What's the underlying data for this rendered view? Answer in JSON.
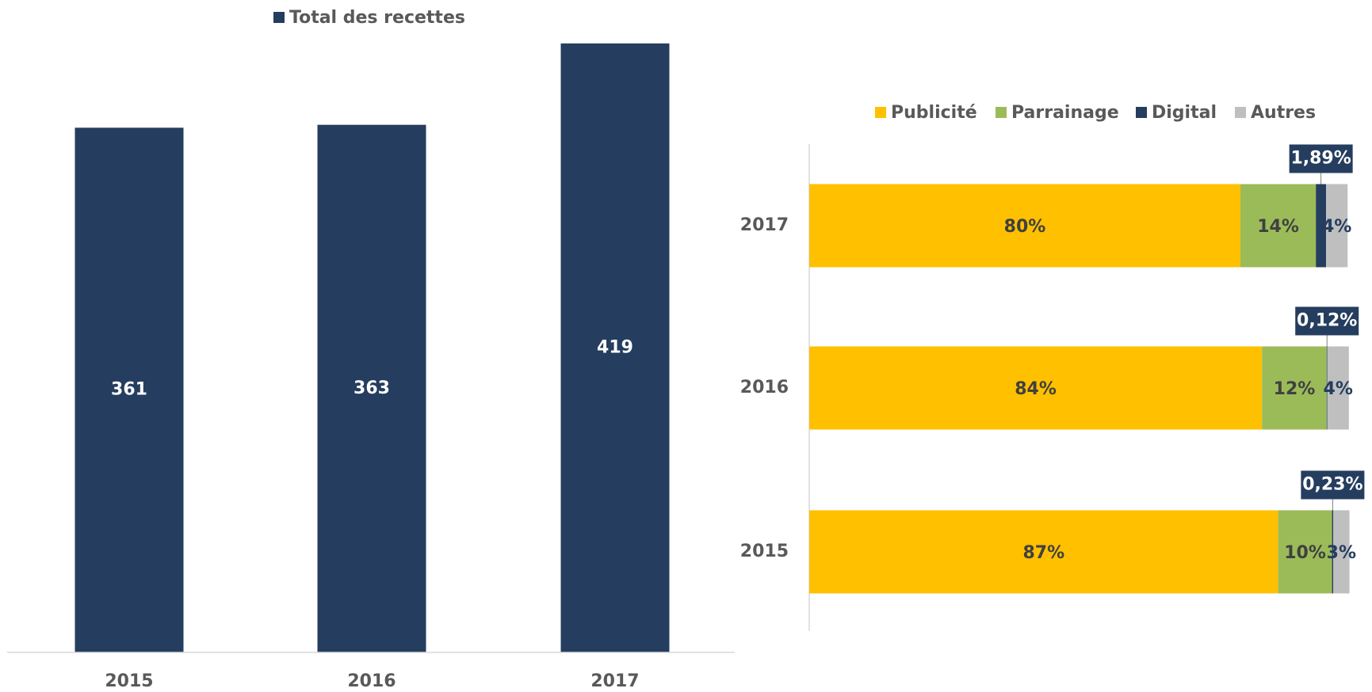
{
  "chart_data": [
    {
      "type": "bar",
      "legend": "Total des recettes",
      "categories": [
        "2015",
        "2016",
        "2017"
      ],
      "values": [
        361,
        363,
        419
      ],
      "color": "#253d5e",
      "ylim": [
        0,
        420
      ]
    },
    {
      "type": "stacked_hbar",
      "categories": [
        "2017",
        "2016",
        "2015"
      ],
      "xlim": [
        0,
        100
      ],
      "series": [
        {
          "name": "Publicité",
          "color": "#ffc000",
          "values": [
            80,
            84,
            87
          ],
          "value_labels": [
            "80%",
            "84%",
            "87%"
          ]
        },
        {
          "name": "Parrainage",
          "color": "#9bbb59",
          "values": [
            14,
            12,
            10
          ],
          "value_labels": [
            "14%",
            "12%",
            "10%"
          ]
        },
        {
          "name": "Digital",
          "color": "#253d5e",
          "values": [
            1.89,
            0.12,
            0.23
          ],
          "value_labels": [
            "1,89%",
            "0,12%",
            "0,23%"
          ]
        },
        {
          "name": "Autres",
          "color": "#bfbfbf",
          "values": [
            4,
            4,
            3
          ],
          "value_labels": [
            "4%",
            "4%",
            "3%"
          ]
        }
      ]
    }
  ]
}
